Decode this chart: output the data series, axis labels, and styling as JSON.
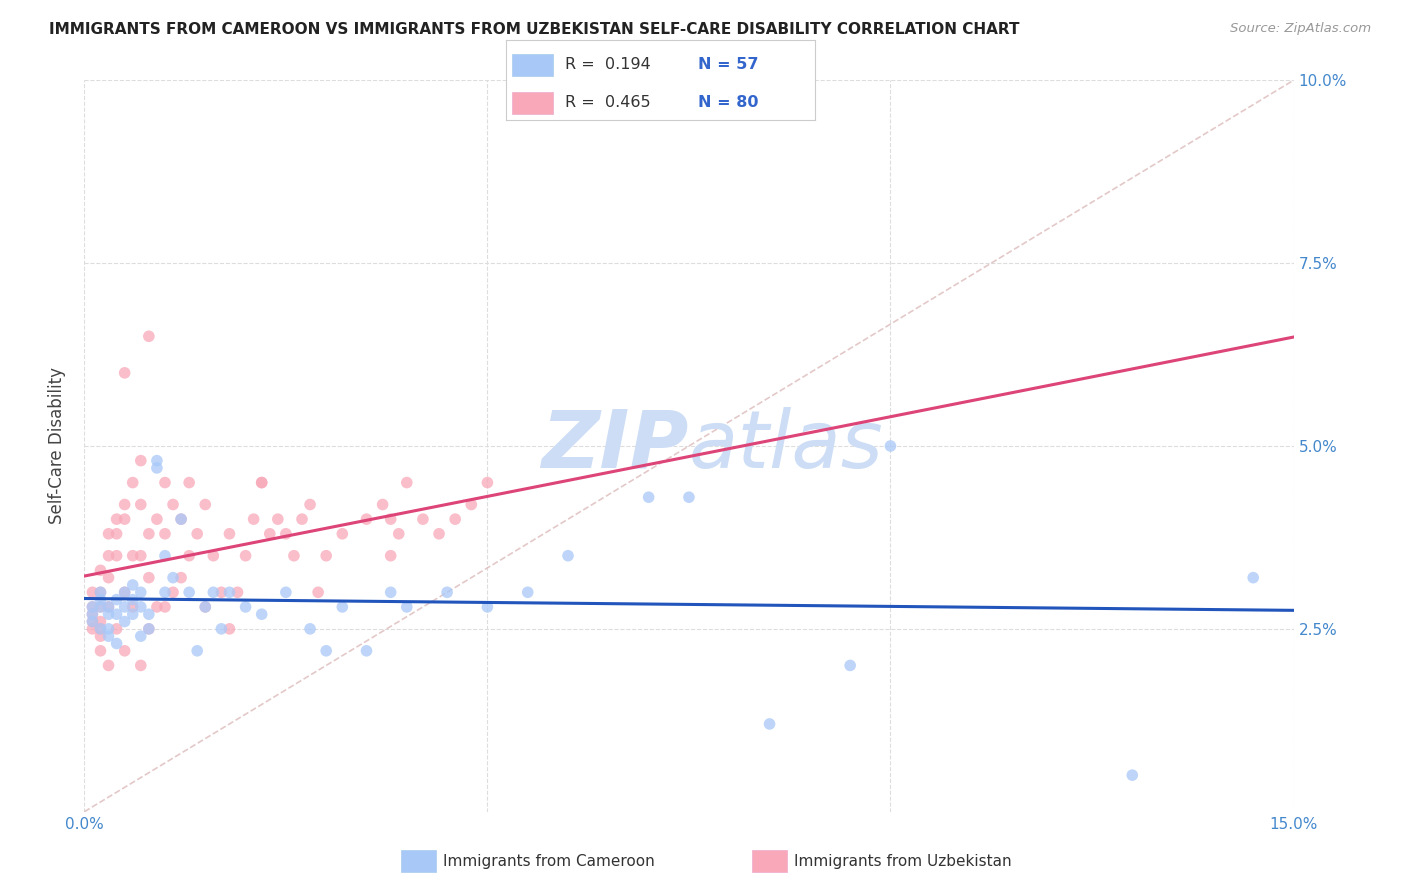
{
  "title": "IMMIGRANTS FROM CAMEROON VS IMMIGRANTS FROM UZBEKISTAN SELF-CARE DISABILITY CORRELATION CHART",
  "source": "Source: ZipAtlas.com",
  "ylabel": "Self-Care Disability",
  "x_min": 0.0,
  "x_max": 0.15,
  "y_min": 0.0,
  "y_max": 0.1,
  "x_ticks": [
    0.0,
    0.05,
    0.1,
    0.15
  ],
  "x_tick_labels": [
    "0.0%",
    "",
    "",
    "15.0%"
  ],
  "y_ticks_right": [
    0.025,
    0.05,
    0.075,
    0.1
  ],
  "y_tick_labels_right": [
    "2.5%",
    "5.0%",
    "7.5%",
    "10.0%"
  ],
  "cameroon_R": "0.194",
  "cameroon_N": "57",
  "uzbekistan_R": "0.465",
  "uzbekistan_N": "80",
  "cameroon_color": "#a8c8f8",
  "uzbekistan_color": "#f8a8b8",
  "cameroon_line_color": "#2255bb",
  "uzbekistan_line_color": "#dd4477",
  "diagonal_color": "#ddbbbb",
  "background_color": "#ffffff",
  "grid_color": "#dddddd",
  "watermark_color": "#ccddf5",
  "cameroon_x": [
    0.001,
    0.001,
    0.001,
    0.002,
    0.002,
    0.002,
    0.002,
    0.003,
    0.003,
    0.003,
    0.003,
    0.004,
    0.004,
    0.004,
    0.005,
    0.005,
    0.005,
    0.006,
    0.006,
    0.006,
    0.007,
    0.007,
    0.007,
    0.008,
    0.008,
    0.009,
    0.009,
    0.01,
    0.01,
    0.011,
    0.012,
    0.013,
    0.014,
    0.015,
    0.016,
    0.017,
    0.018,
    0.02,
    0.022,
    0.025,
    0.028,
    0.03,
    0.032,
    0.035,
    0.038,
    0.04,
    0.045,
    0.05,
    0.055,
    0.06,
    0.07,
    0.075,
    0.085,
    0.095,
    0.1,
    0.13,
    0.145
  ],
  "cameroon_y": [
    0.028,
    0.027,
    0.026,
    0.03,
    0.029,
    0.028,
    0.025,
    0.028,
    0.027,
    0.025,
    0.024,
    0.029,
    0.027,
    0.023,
    0.03,
    0.028,
    0.026,
    0.031,
    0.029,
    0.027,
    0.03,
    0.028,
    0.024,
    0.027,
    0.025,
    0.048,
    0.047,
    0.035,
    0.03,
    0.032,
    0.04,
    0.03,
    0.022,
    0.028,
    0.03,
    0.025,
    0.03,
    0.028,
    0.027,
    0.03,
    0.025,
    0.022,
    0.028,
    0.022,
    0.03,
    0.028,
    0.03,
    0.028,
    0.03,
    0.035,
    0.043,
    0.043,
    0.012,
    0.02,
    0.05,
    0.005,
    0.032
  ],
  "uzbekistan_x": [
    0.001,
    0.001,
    0.001,
    0.001,
    0.001,
    0.002,
    0.002,
    0.002,
    0.002,
    0.002,
    0.002,
    0.002,
    0.003,
    0.003,
    0.003,
    0.003,
    0.003,
    0.004,
    0.004,
    0.004,
    0.004,
    0.005,
    0.005,
    0.005,
    0.005,
    0.006,
    0.006,
    0.006,
    0.007,
    0.007,
    0.007,
    0.007,
    0.008,
    0.008,
    0.008,
    0.009,
    0.009,
    0.01,
    0.01,
    0.01,
    0.011,
    0.011,
    0.012,
    0.012,
    0.013,
    0.013,
    0.014,
    0.015,
    0.015,
    0.016,
    0.017,
    0.018,
    0.018,
    0.019,
    0.02,
    0.021,
    0.022,
    0.023,
    0.024,
    0.025,
    0.026,
    0.027,
    0.028,
    0.029,
    0.03,
    0.032,
    0.035,
    0.037,
    0.038,
    0.039,
    0.04,
    0.042,
    0.044,
    0.046,
    0.048,
    0.05,
    0.005,
    0.008,
    0.022,
    0.038
  ],
  "uzbekistan_y": [
    0.028,
    0.03,
    0.027,
    0.026,
    0.025,
    0.033,
    0.03,
    0.028,
    0.026,
    0.025,
    0.024,
    0.022,
    0.038,
    0.035,
    0.032,
    0.028,
    0.02,
    0.04,
    0.038,
    0.035,
    0.025,
    0.042,
    0.04,
    0.03,
    0.022,
    0.045,
    0.035,
    0.028,
    0.048,
    0.042,
    0.035,
    0.02,
    0.038,
    0.032,
    0.025,
    0.04,
    0.028,
    0.045,
    0.038,
    0.028,
    0.042,
    0.03,
    0.04,
    0.032,
    0.045,
    0.035,
    0.038,
    0.042,
    0.028,
    0.035,
    0.03,
    0.038,
    0.025,
    0.03,
    0.035,
    0.04,
    0.045,
    0.038,
    0.04,
    0.038,
    0.035,
    0.04,
    0.042,
    0.03,
    0.035,
    0.038,
    0.04,
    0.042,
    0.04,
    0.038,
    0.045,
    0.04,
    0.038,
    0.04,
    0.042,
    0.045,
    0.06,
    0.065,
    0.045,
    0.035
  ]
}
